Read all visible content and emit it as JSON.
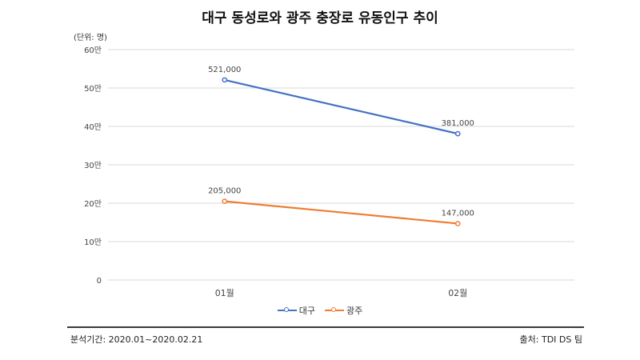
{
  "header": {
    "title": "대구 동성로와 광주 충장로 유동인구 추이",
    "unit_note": "(단위: 명)"
  },
  "footer": {
    "period": "분석기간: 2020.01~2020.02.21",
    "source": "출처: TDI DS 팀"
  },
  "chart_data": {
    "type": "line",
    "title": "대구 동성로와 광주 충장로 유동인구 추이",
    "xlabel": "",
    "ylabel": "",
    "categories": [
      "01월",
      "02월"
    ],
    "y_ticks": [
      "0",
      "10만",
      "20만",
      "30만",
      "40만",
      "50만",
      "60만"
    ],
    "ylim": [
      0,
      600000
    ],
    "grid": true,
    "legend_position": "bottom",
    "series": [
      {
        "name": "대구",
        "values": [
          521000,
          381000
        ],
        "labels": [
          "521,000",
          "381,000"
        ],
        "color": "#4472C4"
      },
      {
        "name": "광주",
        "values": [
          205000,
          147000
        ],
        "labels": [
          "205,000",
          "147,000"
        ],
        "color": "#ED7D31"
      }
    ]
  }
}
